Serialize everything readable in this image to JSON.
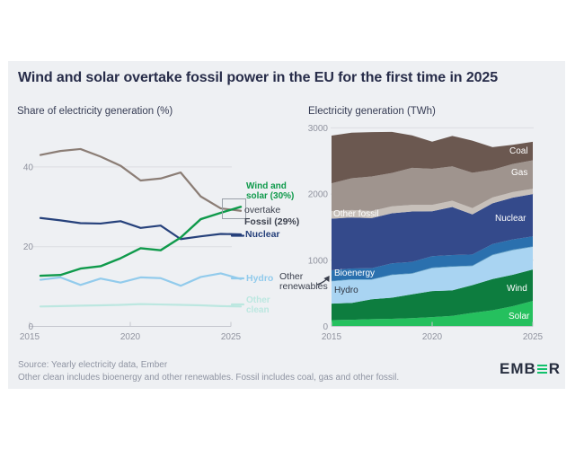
{
  "card": {
    "title": "Wind and solar overtake fossil power in the EU for the first time in 2025",
    "background": "#eef0f3",
    "page_background": "#ffffff",
    "footer_line1": "Source: Yearly electricity data, Ember",
    "footer_line2": "Other clean includes bioenergy and other renewables. Fossil includes coal, gas and other fossil.",
    "logo": {
      "prefix": "EMB",
      "suffix": "R",
      "stylized_letter": "E",
      "bar_color": "#12c16c",
      "text_color": "#272e3f"
    }
  },
  "annotations": {
    "wind_solar": "Wind and solar (30%)",
    "overtake": "overtake",
    "fossil": "Fossil (29%)",
    "nuclear": "Nuclear",
    "hydro": "Hydro",
    "other_clean": "Other clean",
    "other_renewables": "Other renewables"
  },
  "area_labels": {
    "coal": "Coal",
    "gas": "Gas",
    "other_fossil": "Other fossil",
    "nuclear": "Nuclear",
    "bioenergy": "Bioenergy",
    "hydro": "Hydro",
    "wind": "Wind",
    "solar": "Solar"
  },
  "chart_data": [
    {
      "type": "line",
      "title": "Share of electricity generation (%)",
      "x": [
        2015,
        2016,
        2017,
        2018,
        2019,
        2020,
        2021,
        2022,
        2023,
        2024,
        2025
      ],
      "x_ticks": [
        2015,
        2020,
        2025
      ],
      "y_ticks": [
        0,
        20,
        40
      ],
      "ylim": [
        0,
        47
      ],
      "grid": true,
      "legend_position": "right-of-line-labels",
      "series": [
        {
          "name": "Fossil",
          "color": "#8b7d75",
          "values": [
            43.0,
            44.0,
            44.5,
            42.6,
            40.3,
            36.6,
            37.1,
            38.6,
            32.6,
            29.6,
            29.0
          ]
        },
        {
          "name": "Wind and solar",
          "color": "#0f9a4b",
          "values": [
            12.7,
            12.9,
            14.5,
            15.1,
            17.1,
            19.6,
            19.1,
            22.3,
            26.9,
            28.5,
            30.0
          ]
        },
        {
          "name": "Nuclear",
          "color": "#26417b",
          "values": [
            27.2,
            26.6,
            25.9,
            25.8,
            26.4,
            24.7,
            25.3,
            21.9,
            22.6,
            23.2,
            23.1
          ]
        },
        {
          "name": "Hydro",
          "color": "#92cbec",
          "values": [
            11.7,
            12.3,
            10.4,
            12.0,
            11.0,
            12.3,
            12.1,
            10.2,
            12.4,
            13.3,
            11.9
          ]
        },
        {
          "name": "Other clean",
          "color": "#bce7e0",
          "values": [
            5.0,
            5.1,
            5.2,
            5.3,
            5.4,
            5.6,
            5.5,
            5.4,
            5.3,
            5.1,
            5.0
          ]
        }
      ]
    },
    {
      "type": "area",
      "title": "Electricity generation (TWh)",
      "x": [
        2015,
        2016,
        2017,
        2018,
        2019,
        2020,
        2021,
        2022,
        2023,
        2024,
        2025
      ],
      "x_ticks": [
        2015,
        2020,
        2025
      ],
      "y_ticks": [
        0,
        1000,
        2000,
        3000
      ],
      "ylim": [
        0,
        3050
      ],
      "stack_order": "bottom-to-top",
      "series": [
        {
          "name": "Solar",
          "color": "#25c05e",
          "values": [
            95,
            100,
            110,
            115,
            125,
            140,
            160,
            205,
            245,
            305,
            385
          ]
        },
        {
          "name": "Wind",
          "color": "#0d7d3f",
          "values": [
            250,
            255,
            300,
            320,
            360,
            395,
            385,
            420,
            470,
            475,
            475
          ]
        },
        {
          "name": "Hydro",
          "color": "#a9d4f2",
          "values": [
            335,
            350,
            295,
            340,
            310,
            345,
            355,
            285,
            360,
            370,
            340
          ]
        },
        {
          "name": "Other renewables",
          "color": "#5c9fc4",
          "values": [
            8,
            8,
            8,
            9,
            9,
            9,
            9,
            9,
            10,
            10,
            10
          ]
        },
        {
          "name": "Bioenergy",
          "color": "#2a70ae",
          "values": [
            160,
            163,
            168,
            170,
            172,
            172,
            170,
            168,
            160,
            155,
            150
          ]
        },
        {
          "name": "Nuclear",
          "color": "#344a8b",
          "values": [
            780,
            770,
            755,
            755,
            760,
            680,
            725,
            605,
            615,
            630,
            640
          ]
        },
        {
          "name": "Other fossil",
          "color": "#c7c0ba",
          "values": [
            115,
            112,
            110,
            105,
            100,
            95,
            95,
            95,
            88,
            85,
            80
          ]
        },
        {
          "name": "Gas",
          "color": "#9f948e",
          "values": [
            420,
            480,
            520,
            505,
            560,
            545,
            520,
            535,
            420,
            425,
            430
          ]
        },
        {
          "name": "Coal",
          "color": "#6b5850",
          "values": [
            720,
            690,
            670,
            620,
            490,
            410,
            460,
            485,
            340,
            290,
            280
          ]
        }
      ]
    }
  ]
}
